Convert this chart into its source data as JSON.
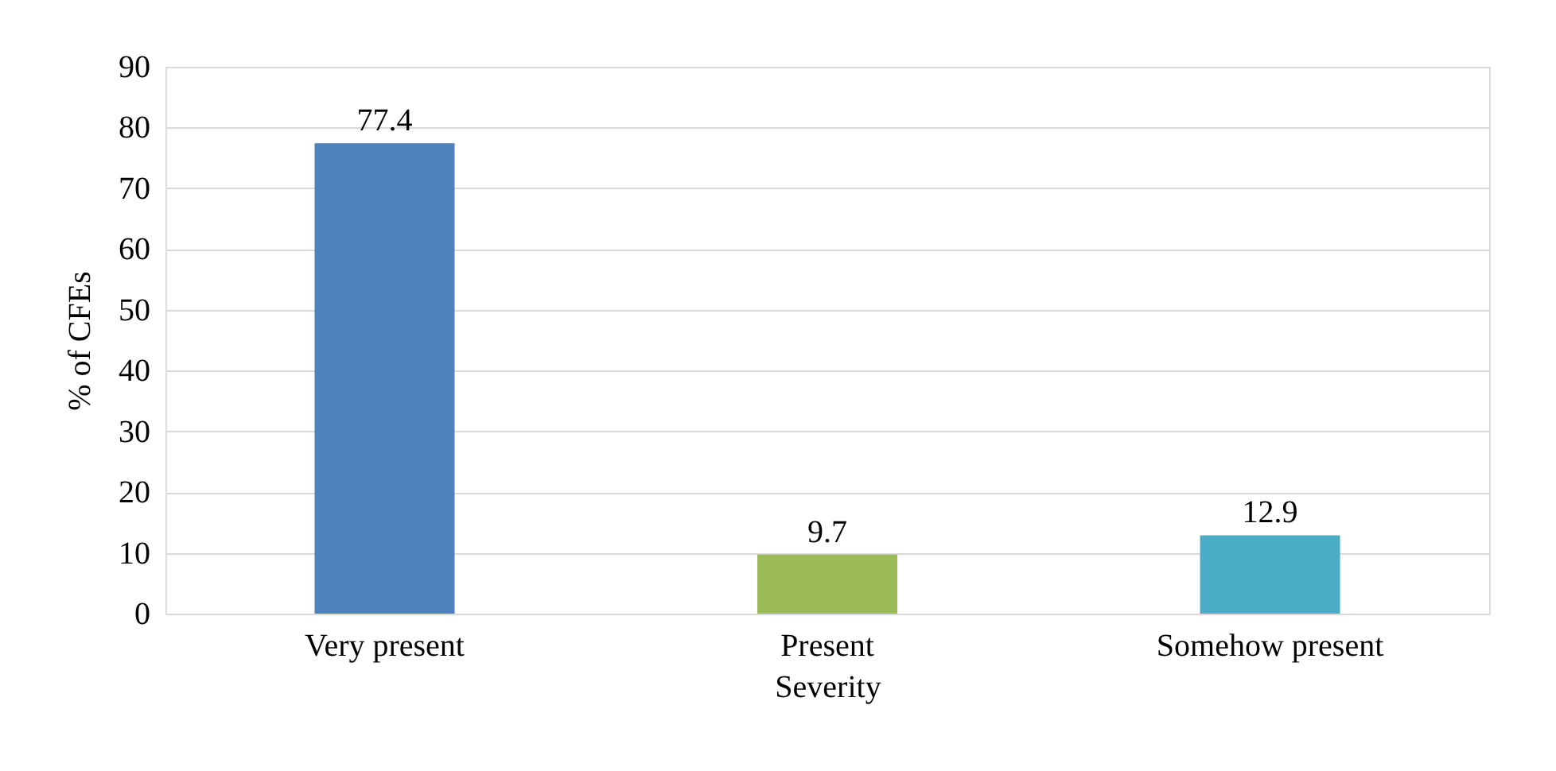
{
  "chart_data": {
    "type": "bar",
    "xlabel": "Severity",
    "ylabel": "% of CFEs",
    "categories": [
      "Very present",
      "Present",
      "Somehow present"
    ],
    "values": [
      77.4,
      9.7,
      12.9
    ],
    "colors": [
      "#4f81bd",
      "#9bbb59",
      "#4bacc6"
    ],
    "ylim": [
      0,
      90
    ],
    "yticks": [
      0,
      10,
      20,
      30,
      40,
      50,
      60,
      70,
      80,
      90
    ],
    "grid": "y",
    "data_labels": true
  }
}
